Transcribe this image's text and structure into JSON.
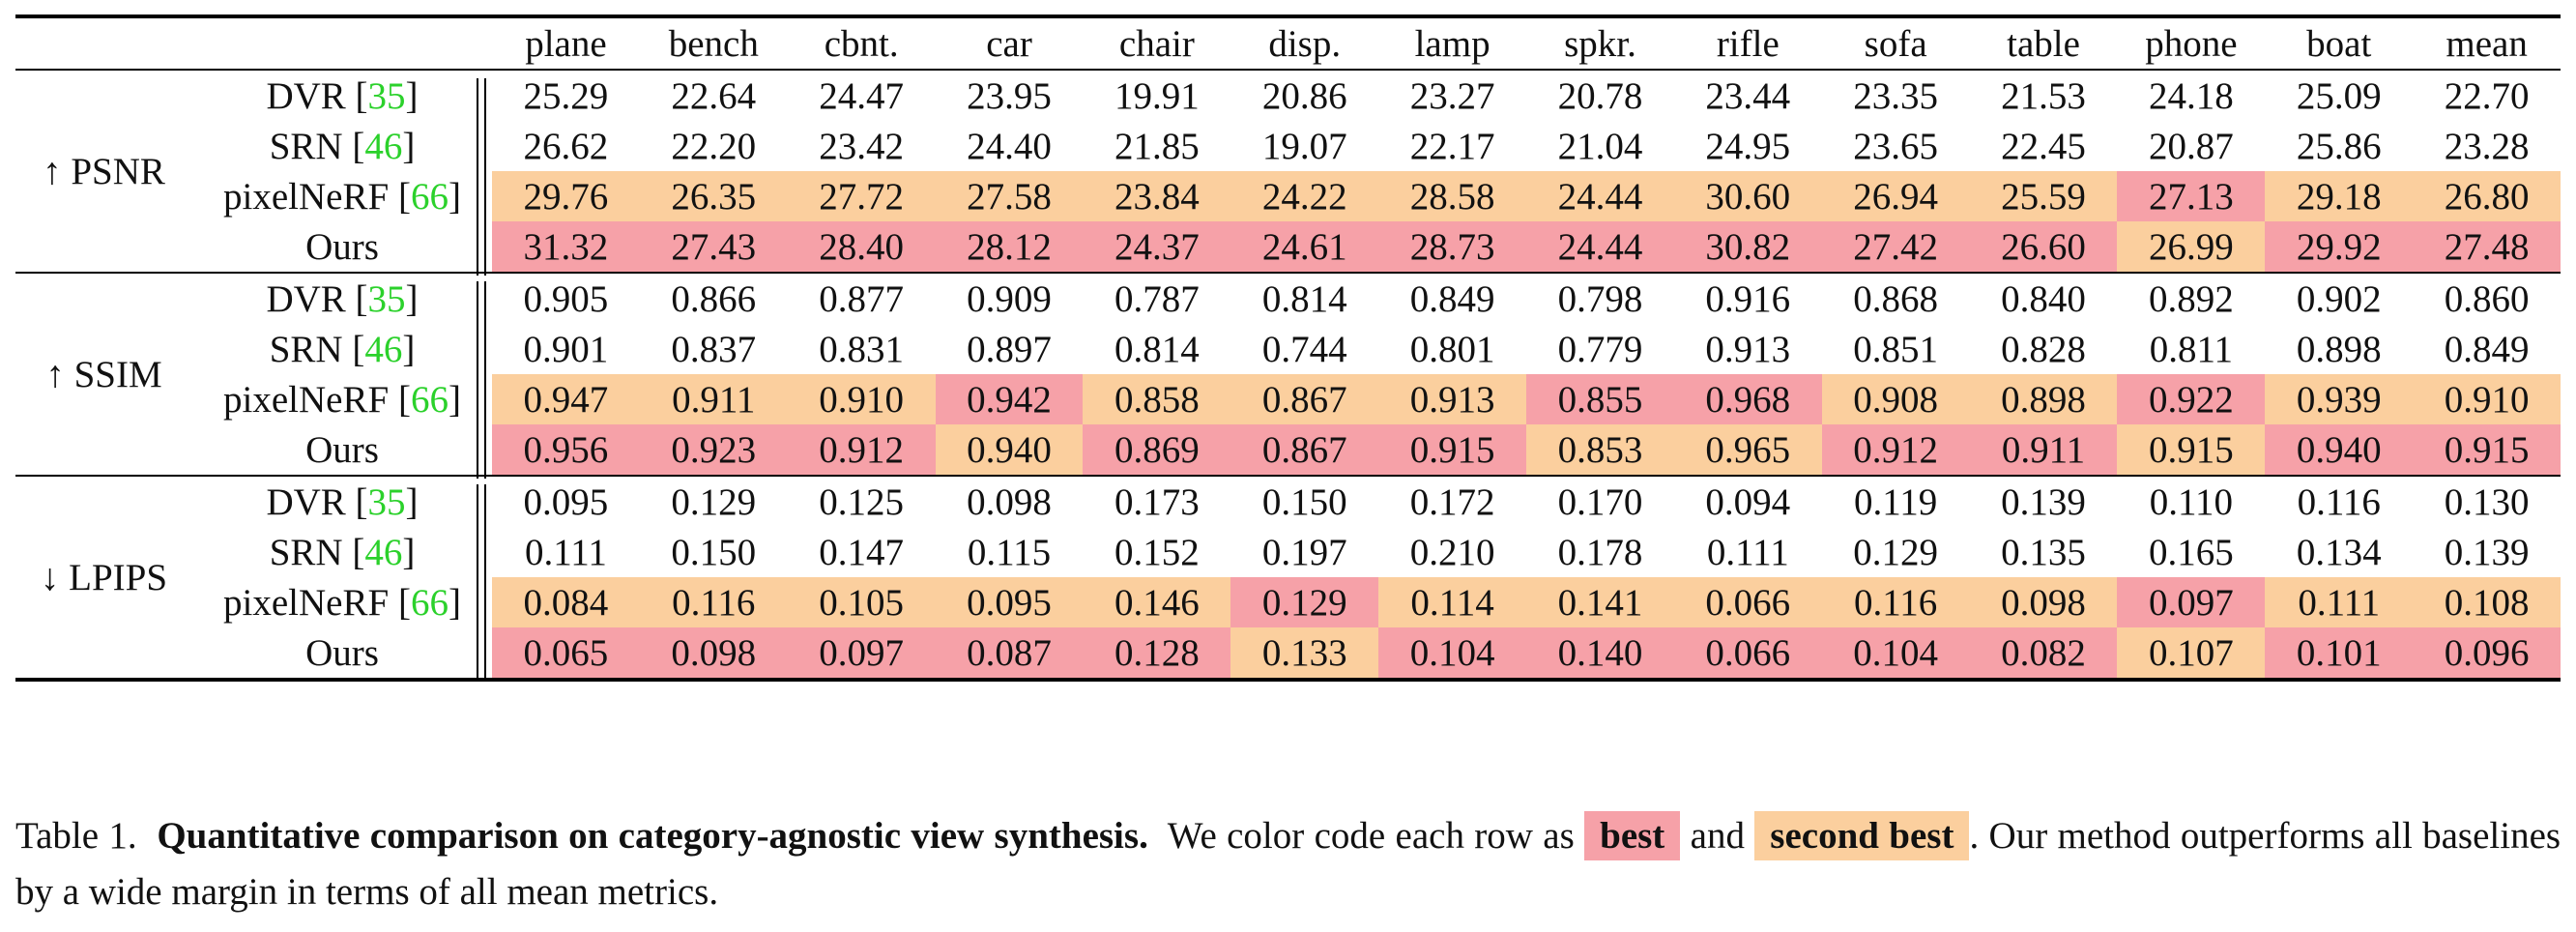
{
  "columns": [
    "plane",
    "bench",
    "cbnt.",
    "car",
    "chair",
    "disp.",
    "lamp",
    "spkr.",
    "rifle",
    "sofa",
    "table",
    "phone",
    "boat",
    "mean"
  ],
  "groups": [
    {
      "metric": "↑ PSNR",
      "rows": [
        {
          "method": "DVR",
          "cite": "35",
          "values": [
            "25.29",
            "22.64",
            "24.47",
            "23.95",
            "19.91",
            "20.86",
            "23.27",
            "20.78",
            "23.44",
            "23.35",
            "21.53",
            "24.18",
            "25.09",
            "22.70"
          ],
          "marks": [
            "",
            "",
            "",
            "",
            "",
            "",
            "",
            "",
            "",
            "",
            "",
            "",
            "",
            ""
          ]
        },
        {
          "method": "SRN",
          "cite": "46",
          "values": [
            "26.62",
            "22.20",
            "23.42",
            "24.40",
            "21.85",
            "19.07",
            "22.17",
            "21.04",
            "24.95",
            "23.65",
            "22.45",
            "20.87",
            "25.86",
            "23.28"
          ],
          "marks": [
            "",
            "",
            "",
            "",
            "",
            "",
            "",
            "",
            "",
            "",
            "",
            "",
            "",
            ""
          ]
        },
        {
          "method": "pixelNeRF",
          "cite": "66",
          "values": [
            "29.76",
            "26.35",
            "27.72",
            "27.58",
            "23.84",
            "24.22",
            "28.58",
            "24.44",
            "30.60",
            "26.94",
            "25.59",
            "27.13",
            "29.18",
            "26.80"
          ],
          "marks": [
            "s",
            "s",
            "s",
            "s",
            "s",
            "s",
            "s",
            "s",
            "s",
            "s",
            "s",
            "b",
            "s",
            "s"
          ]
        },
        {
          "method": "Ours",
          "cite": "",
          "values": [
            "31.32",
            "27.43",
            "28.40",
            "28.12",
            "24.37",
            "24.61",
            "28.73",
            "24.44",
            "30.82",
            "27.42",
            "26.60",
            "26.99",
            "29.92",
            "27.48"
          ],
          "marks": [
            "b",
            "b",
            "b",
            "b",
            "b",
            "b",
            "b",
            "b",
            "b",
            "b",
            "b",
            "s",
            "b",
            "b"
          ]
        }
      ]
    },
    {
      "metric": "↑ SSIM",
      "rows": [
        {
          "method": "DVR",
          "cite": "35",
          "values": [
            "0.905",
            "0.866",
            "0.877",
            "0.909",
            "0.787",
            "0.814",
            "0.849",
            "0.798",
            "0.916",
            "0.868",
            "0.840",
            "0.892",
            "0.902",
            "0.860"
          ],
          "marks": [
            "",
            "",
            "",
            "",
            "",
            "",
            "",
            "",
            "",
            "",
            "",
            "",
            "",
            ""
          ]
        },
        {
          "method": "SRN",
          "cite": "46",
          "values": [
            "0.901",
            "0.837",
            "0.831",
            "0.897",
            "0.814",
            "0.744",
            "0.801",
            "0.779",
            "0.913",
            "0.851",
            "0.828",
            "0.811",
            "0.898",
            "0.849"
          ],
          "marks": [
            "",
            "",
            "",
            "",
            "",
            "",
            "",
            "",
            "",
            "",
            "",
            "",
            "",
            ""
          ]
        },
        {
          "method": "pixelNeRF",
          "cite": "66",
          "values": [
            "0.947",
            "0.911",
            "0.910",
            "0.942",
            "0.858",
            "0.867",
            "0.913",
            "0.855",
            "0.968",
            "0.908",
            "0.898",
            "0.922",
            "0.939",
            "0.910"
          ],
          "marks": [
            "s",
            "s",
            "s",
            "b",
            "s",
            "s",
            "s",
            "b",
            "b",
            "s",
            "s",
            "b",
            "s",
            "s"
          ]
        },
        {
          "method": "Ours",
          "cite": "",
          "values": [
            "0.956",
            "0.923",
            "0.912",
            "0.940",
            "0.869",
            "0.867",
            "0.915",
            "0.853",
            "0.965",
            "0.912",
            "0.911",
            "0.915",
            "0.940",
            "0.915"
          ],
          "marks": [
            "b",
            "b",
            "b",
            "s",
            "b",
            "b",
            "b",
            "s",
            "s",
            "b",
            "b",
            "s",
            "b",
            "b"
          ]
        }
      ]
    },
    {
      "metric": "↓ LPIPS",
      "rows": [
        {
          "method": "DVR",
          "cite": "35",
          "values": [
            "0.095",
            "0.129",
            "0.125",
            "0.098",
            "0.173",
            "0.150",
            "0.172",
            "0.170",
            "0.094",
            "0.119",
            "0.139",
            "0.110",
            "0.116",
            "0.130"
          ],
          "marks": [
            "",
            "",
            "",
            "",
            "",
            "",
            "",
            "",
            "",
            "",
            "",
            "",
            "",
            ""
          ]
        },
        {
          "method": "SRN",
          "cite": "46",
          "values": [
            "0.111",
            "0.150",
            "0.147",
            "0.115",
            "0.152",
            "0.197",
            "0.210",
            "0.178",
            "0.111",
            "0.129",
            "0.135",
            "0.165",
            "0.134",
            "0.139"
          ],
          "marks": [
            "",
            "",
            "",
            "",
            "",
            "",
            "",
            "",
            "",
            "",
            "",
            "",
            "",
            ""
          ]
        },
        {
          "method": "pixelNeRF",
          "cite": "66",
          "values": [
            "0.084",
            "0.116",
            "0.105",
            "0.095",
            "0.146",
            "0.129",
            "0.114",
            "0.141",
            "0.066",
            "0.116",
            "0.098",
            "0.097",
            "0.111",
            "0.108"
          ],
          "marks": [
            "s",
            "s",
            "s",
            "s",
            "s",
            "b",
            "s",
            "s",
            "s",
            "s",
            "s",
            "b",
            "s",
            "s"
          ]
        },
        {
          "method": "Ours",
          "cite": "",
          "values": [
            "0.065",
            "0.098",
            "0.097",
            "0.087",
            "0.128",
            "0.133",
            "0.104",
            "0.140",
            "0.066",
            "0.104",
            "0.082",
            "0.107",
            "0.101",
            "0.096"
          ],
          "marks": [
            "b",
            "b",
            "b",
            "b",
            "b",
            "s",
            "b",
            "b",
            "b",
            "b",
            "b",
            "s",
            "b",
            "b"
          ]
        }
      ]
    }
  ],
  "caption": {
    "label": "Table 1.",
    "title": "Quantitative comparison on category-agnostic view synthesis.",
    "text_before": "We color code each row as",
    "best": "best",
    "and": "and",
    "second": "second best",
    "text_after": ". Our method outperforms all baselines by a wide margin in terms of all mean metrics."
  },
  "colors": {
    "best": "#f6a1a8",
    "second_best": "#fbcf9e",
    "citation": "#2bd12b"
  }
}
